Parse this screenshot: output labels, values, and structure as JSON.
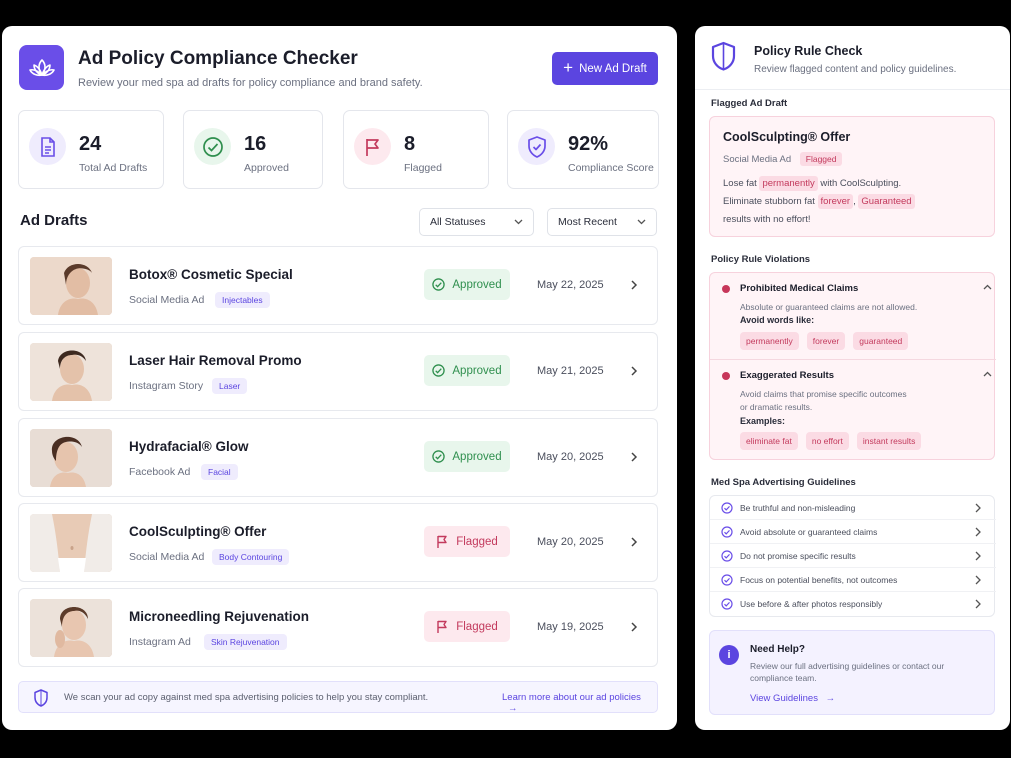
{
  "header": {
    "title": "Ad Policy Compliance Checker",
    "subtitle": "Review your med spa ad drafts for policy compliance and brand safety.",
    "new_button": "New Ad Draft"
  },
  "stats": [
    {
      "value": "24",
      "label": "Total Ad Drafts",
      "icon": "document-icon",
      "color": "#6a4ee8"
    },
    {
      "value": "16",
      "label": "Approved",
      "icon": "check-circle-icon",
      "color": "#2f8f4e"
    },
    {
      "value": "8",
      "label": "Flagged",
      "icon": "flag-icon",
      "color": "#c33a5d"
    },
    {
      "value": "92%",
      "label": "Compliance Score",
      "icon": "shield-check-icon",
      "color": "#6a4ee8"
    }
  ],
  "drafts_section": {
    "title": "Ad Drafts",
    "status_filter": "All Statuses",
    "sort": "Most Recent"
  },
  "drafts": [
    {
      "title": "Botox® Cosmetic Special",
      "type": "Social Media Ad",
      "tag": "Injectables",
      "status": "Approved",
      "date": "May 22, 2025"
    },
    {
      "title": "Laser Hair Removal Promo",
      "type": "Instagram Story",
      "tag": "Laser",
      "status": "Approved",
      "date": "May 21, 2025"
    },
    {
      "title": "Hydrafacial® Glow",
      "type": "Facebook Ad",
      "tag": "Facial",
      "status": "Approved",
      "date": "May 20, 2025"
    },
    {
      "title": "CoolSculpting® Offer",
      "type": "Social Media Ad",
      "tag": "Body Contouring",
      "status": "Flagged",
      "date": "May 20, 2025"
    },
    {
      "title": "Microneedling Rejuvenation",
      "type": "Instagram Ad",
      "tag": "Skin Rejuvenation",
      "status": "Flagged",
      "date": "May 19, 2025"
    }
  ],
  "footer": {
    "text": "We scan your ad copy against med spa advertising policies to help you stay compliant.",
    "link": "Learn more about our ad policies"
  },
  "side": {
    "title": "Policy Rule Check",
    "subtitle": "Review flagged content and policy guidelines.",
    "flagged_heading": "Flagged Ad Draft",
    "flagged": {
      "title": "CoolSculpting® Offer",
      "type": "Social Media Ad",
      "tag": "Flagged",
      "text1": "Lose fat",
      "hl1": "permanently",
      "text2": "with CoolSculpting.",
      "text3": "Eliminate stubborn fat",
      "hl2": "forever",
      "text4": ",",
      "hl3": "Guaranteed",
      "text5": "results with no effort!"
    },
    "violations_heading": "Policy Rule Violations",
    "violations": [
      {
        "title": "Prohibited Medical Claims",
        "desc": "Absolute or guaranteed claims are not allowed.",
        "sub": "Avoid words like:",
        "chips": [
          "permanently",
          "forever",
          "guaranteed"
        ]
      },
      {
        "title": "Exaggerated Results",
        "desc": "Avoid claims that promise specific outcomes or dramatic results.",
        "sub": "Examples:",
        "chips": [
          "eliminate fat",
          "no effort",
          "instant results"
        ]
      }
    ],
    "guidelines_heading": "Med Spa Advertising Guidelines",
    "guidelines": [
      "Be truthful and non-misleading",
      "Avoid absolute or guaranteed claims",
      "Do not promise specific results",
      "Focus on potential benefits, not outcomes",
      "Use before & after photos responsibly"
    ],
    "help": {
      "title": "Need Help?",
      "desc": "Review our full advertising guidelines or contact our compliance team.",
      "link": "View Guidelines"
    }
  }
}
